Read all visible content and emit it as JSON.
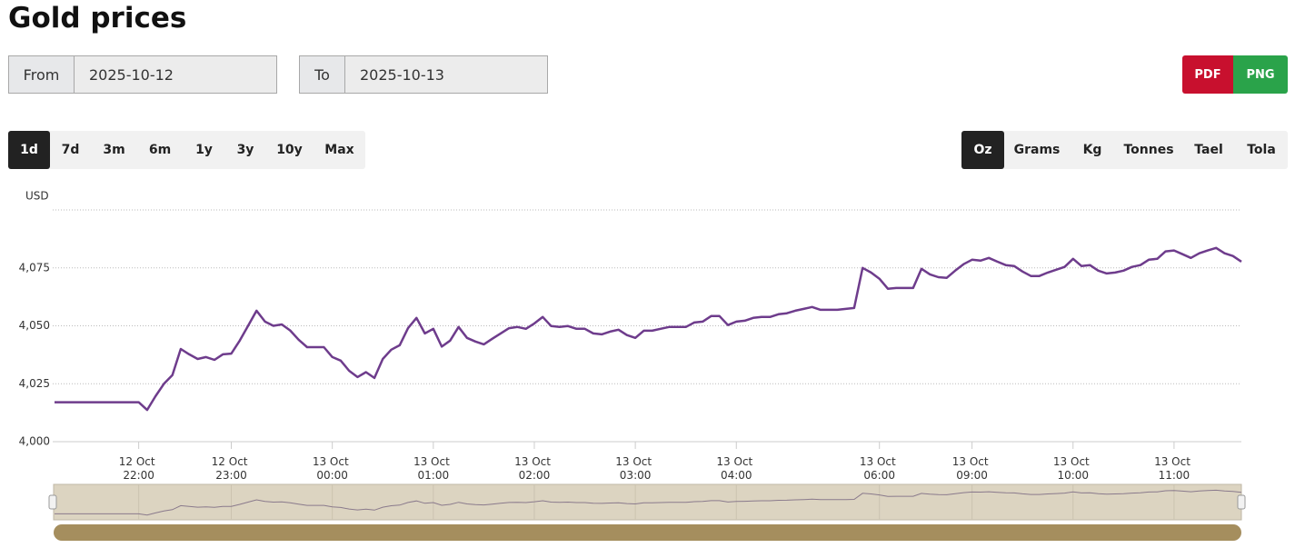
{
  "page": {
    "title": "Gold prices",
    "from_label": "From",
    "from_value": "2025-10-12",
    "to_label": "To",
    "to_value": "2025-10-13",
    "export_buttons": [
      "PDF",
      "PNG"
    ],
    "range_buttons": [
      "1d",
      "7d",
      "3m",
      "6m",
      "1y",
      "3y",
      "10y",
      "Max"
    ],
    "unit_buttons": [
      "Oz",
      "Grams",
      "Kg",
      "Tonnes",
      "Tael",
      "Tola"
    ]
  },
  "chart_data": {
    "type": "line",
    "y_label": "USD",
    "color": "#6e3c8c",
    "ylim": [
      4000,
      4100
    ],
    "yticks": [
      {
        "value": 4000,
        "label": "4,000"
      },
      {
        "value": 4025,
        "label": "4,025"
      },
      {
        "value": 4050,
        "label": "4,050"
      },
      {
        "value": 4075,
        "label": "4,075"
      }
    ],
    "grid": true,
    "categories": [
      null,
      null,
      null,
      null,
      null,
      null,
      null,
      null,
      null,
      null,
      "12 Oct 22:00",
      null,
      null,
      null,
      null,
      null,
      null,
      null,
      null,
      null,
      null,
      "12 Oct 23:00",
      null,
      null,
      null,
      null,
      null,
      null,
      null,
      null,
      null,
      null,
      null,
      "13 Oct 00:00",
      null,
      null,
      null,
      null,
      null,
      null,
      null,
      null,
      null,
      null,
      null,
      "13 Oct 01:00",
      null,
      null,
      null,
      null,
      null,
      null,
      null,
      null,
      null,
      null,
      null,
      "13 Oct 02:00",
      null,
      null,
      null,
      null,
      null,
      null,
      null,
      null,
      null,
      null,
      null,
      "13 Oct 03:00",
      null,
      null,
      null,
      null,
      null,
      null,
      null,
      null,
      null,
      null,
      null,
      "13 Oct 04:00",
      null,
      null,
      null,
      null,
      null,
      null,
      null,
      null,
      null,
      null,
      null,
      null,
      null,
      null,
      null,
      null,
      "13 Oct 06:00",
      null,
      null,
      null,
      null,
      null,
      null,
      null,
      null,
      null,
      null,
      "13 Oct 09:00",
      null,
      null,
      null,
      null,
      null,
      null,
      null,
      null,
      null,
      null,
      null,
      "13 Oct 10:00",
      null,
      null,
      null,
      null,
      null,
      null,
      null,
      null,
      null,
      null,
      null,
      "13 Oct 11:00",
      null,
      null,
      null,
      null,
      null,
      null,
      null,
      null
    ],
    "values": [
      4017,
      4017,
      4017,
      4017,
      4017,
      4017,
      4017,
      4017,
      4017,
      4017,
      4017,
      4013.7,
      4019.6,
      4025,
      4028.7,
      4040,
      4037.7,
      4035.7,
      4036.5,
      4035.3,
      4037.7,
      4038,
      4043.6,
      4050,
      4056.5,
      4051.8,
      4050,
      4050.6,
      4048,
      4044,
      4040.8,
      4040.8,
      4040.8,
      4036.5,
      4035,
      4030.6,
      4027.9,
      4030,
      4027.5,
      4035.7,
      4039.7,
      4041.6,
      4049,
      4053.4,
      4046.7,
      4048.7,
      4041,
      4043.6,
      4049.5,
      4044.8,
      4043.2,
      4042,
      4044.4,
      4046.7,
      4049,
      4049.5,
      4048.7,
      4051,
      4053.8,
      4049.9,
      4049.5,
      4049.9,
      4048.7,
      4048.7,
      4046.7,
      4046.3,
      4047.5,
      4048.3,
      4046,
      4044.8,
      4047.9,
      4047.9,
      4048.7,
      4049.5,
      4049.5,
      4049.5,
      4051.4,
      4051.8,
      4054.2,
      4054.2,
      4050.3,
      4051.8,
      4052.2,
      4053.4,
      4053.8,
      4053.8,
      4055,
      4055.4,
      4056.5,
      4057.3,
      4058.1,
      4056.9,
      4056.9,
      4056.9,
      4057.3,
      4057.7,
      4075,
      4073,
      4070.3,
      4066,
      4066.3,
      4066.3,
      4066.3,
      4074.6,
      4072.2,
      4071,
      4070.7,
      4073.8,
      4076.6,
      4078.5,
      4078.1,
      4079.3,
      4077.7,
      4076.2,
      4075.8,
      4073.4,
      4071.5,
      4071.5,
      4073,
      4074.2,
      4075.4,
      4078.9,
      4075.8,
      4076.2,
      4073.8,
      4072.6,
      4073,
      4073.8,
      4075.4,
      4076.2,
      4078.5,
      4078.9,
      4082.1,
      4082.5,
      4080.9,
      4079.3,
      4081.3,
      4082.5,
      4083.6,
      4081.3,
      4080.1,
      4077.7
    ]
  }
}
